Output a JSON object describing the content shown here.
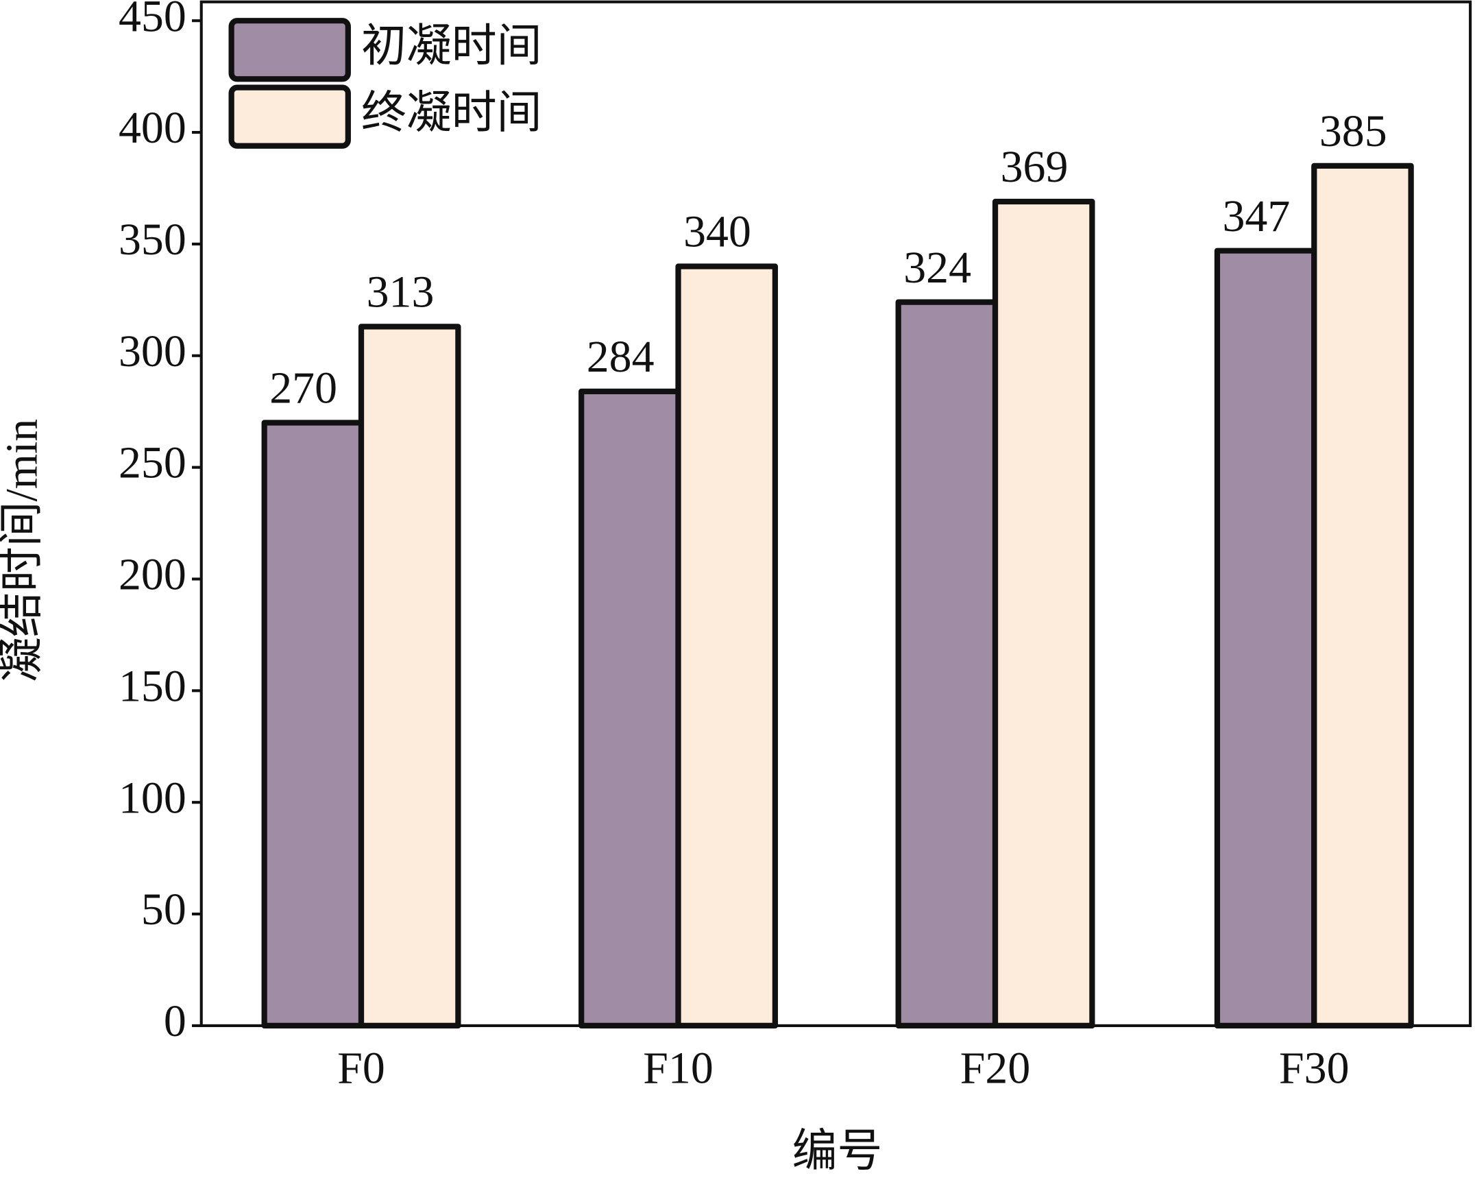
{
  "chart_data": {
    "type": "bar",
    "x_label": "编号",
    "y_label": "凝结时间/min",
    "categories": [
      "F0",
      "F10",
      "F20",
      "F30"
    ],
    "series": [
      {
        "name": "初凝时间",
        "color": "#a08ca4",
        "values": [
          270,
          284,
          324,
          347
        ]
      },
      {
        "name": "终凝时间",
        "color": "#fdebdc",
        "values": [
          313,
          340,
          369,
          385
        ]
      }
    ],
    "ylim": [
      0,
      450
    ],
    "yticks": [
      0,
      50,
      100,
      150,
      200,
      250,
      300,
      350,
      400,
      450
    ],
    "legend": "upper-left"
  }
}
